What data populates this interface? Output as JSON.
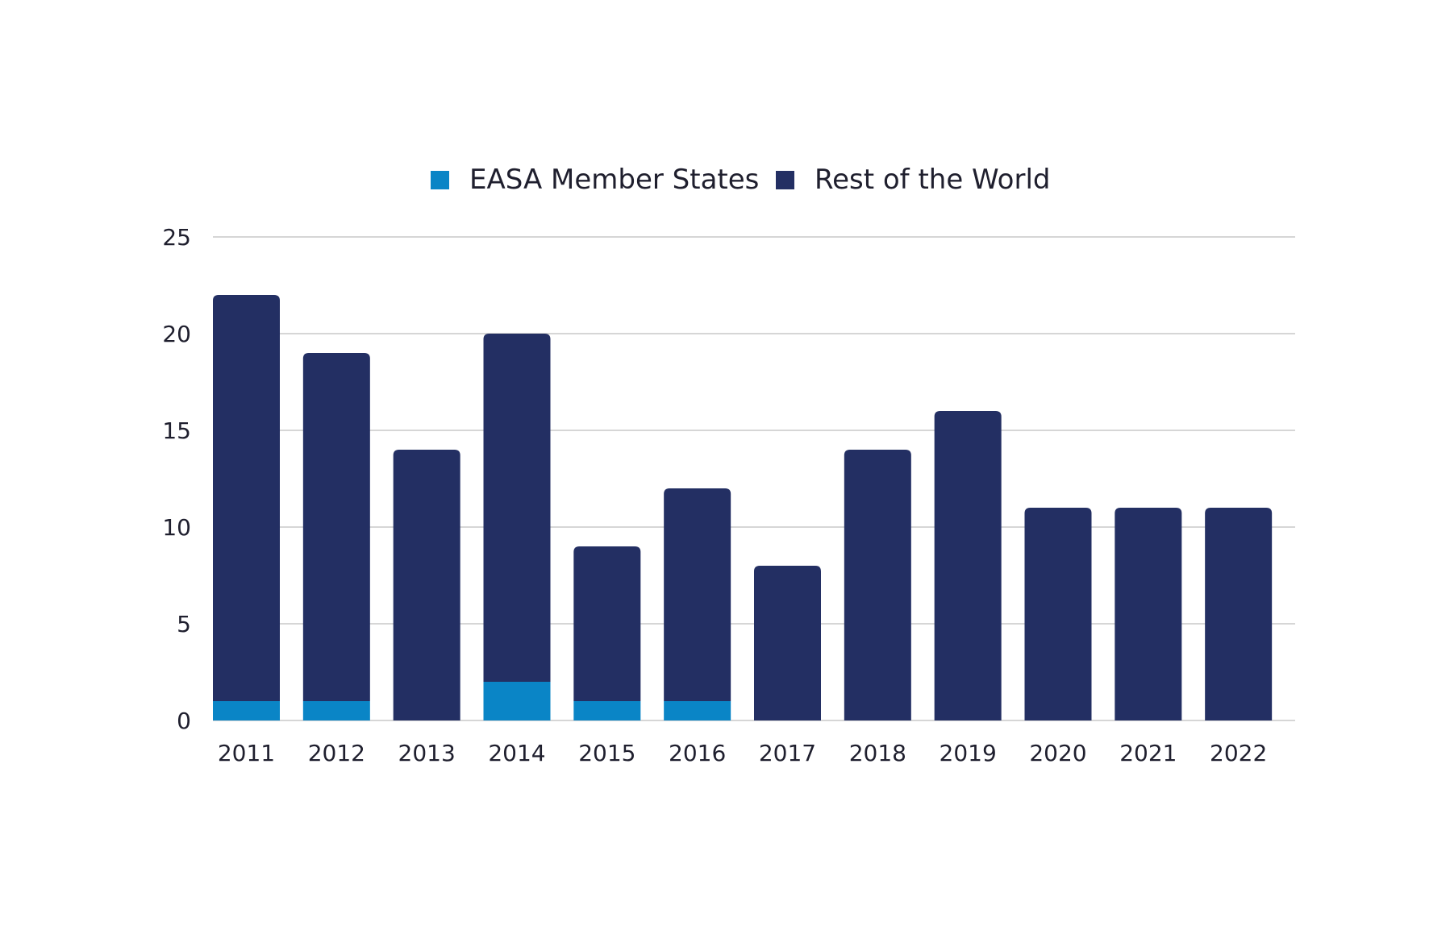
{
  "chart_data": {
    "type": "bar",
    "stacked": true,
    "categories": [
      "2011",
      "2012",
      "2013",
      "2014",
      "2015",
      "2016",
      "2017",
      "2018",
      "2019",
      "2020",
      "2021",
      "2022"
    ],
    "series": [
      {
        "name": "EASA Member States",
        "color": "#0a85c6",
        "values": [
          1,
          1,
          0,
          2,
          1,
          1,
          0,
          0,
          0,
          0,
          0,
          0
        ]
      },
      {
        "name": "Rest of the World",
        "color": "#232f63",
        "values": [
          21,
          18,
          14,
          18,
          8,
          11,
          8,
          14,
          16,
          11,
          11,
          11
        ]
      }
    ],
    "ylim": [
      0,
      25
    ],
    "yticks": [
      0,
      5,
      10,
      15,
      20,
      25
    ],
    "grid": true,
    "legend_position": "top-center",
    "title": "",
    "xlabel": "",
    "ylabel": ""
  }
}
